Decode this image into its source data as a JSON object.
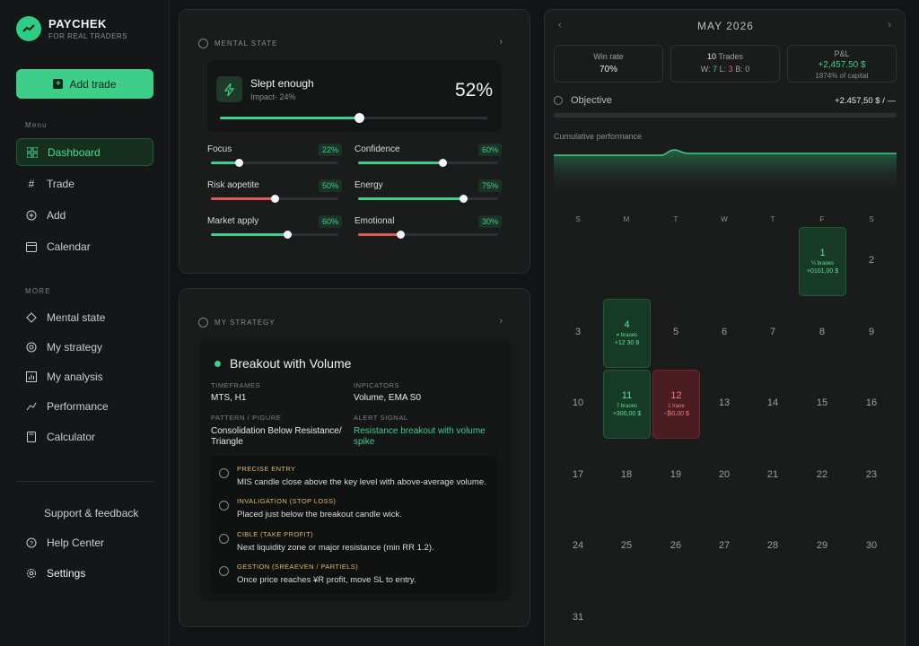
{
  "brand": {
    "name": "PAYCHEK",
    "tagline": "FOR REAL TRADERS"
  },
  "sidebar": {
    "add_trade": "Add trade",
    "menu_label": "Menu",
    "menu": [
      "Dashboard",
      "Trade",
      "Add",
      "Calendar"
    ],
    "more_label": "MORE",
    "more": [
      "Mental state",
      "My strategy",
      "My analysis",
      "Performance",
      "Calculator"
    ],
    "support": "Support & feedback",
    "help": "Help Center",
    "settings": "Settings"
  },
  "mental": {
    "title": "MENTAL STATE",
    "slept": {
      "title": "Slept enough",
      "impact": "Impact- 24%",
      "pct": "52%",
      "value": 0.52
    },
    "metrics": [
      {
        "label": "Focus",
        "badge": "22%",
        "value": 0.22,
        "color": "#3dcf8a"
      },
      {
        "label": "Confidence",
        "badge": "60%",
        "value": 0.6,
        "color": "#3dcf8a"
      },
      {
        "label": "Risk aopetite",
        "badge": "50%",
        "value": 0.5,
        "color": "#e05a5a"
      },
      {
        "label": "Energy",
        "badge": "75%",
        "value": 0.75,
        "color": "#3dcf8a"
      },
      {
        "label": "Market apply",
        "badge": "60%",
        "value": 0.6,
        "color": "#3dcf8a"
      },
      {
        "label": "Emotional",
        "badge": "30%",
        "value": 0.3,
        "color": "#e05a5a"
      }
    ]
  },
  "strategy": {
    "title": "MY STRATEGY",
    "name": "Breakout with Volume",
    "timeframes_label": "TIMEFRAMES",
    "timeframes": "MTS, H1",
    "indicators_label": "INPICATORS",
    "indicators": "Volume, EMA S0",
    "pattern_label": "PATTERN / PIGURE",
    "pattern_line1": "Consolidation Below Resistance/",
    "pattern_line2": "Triangle",
    "alert_label": "ALERT SIGNAL",
    "alert_line1": "Resistance breakout with volume",
    "alert_line2": "spike",
    "rules": [
      {
        "label": "PRECISE ENTRY",
        "text": "MIS candle close above the key level with above-average volume."
      },
      {
        "label": "INVALIGATION (STOP LOSS)",
        "text": "Placed just below the breakout candle wick."
      },
      {
        "label": "CIBLE (TAKE PROFIT)",
        "text": "Next liquidity zone or major resistance (min RR 1.2)."
      },
      {
        "label": "GESTION (SREAEVEN / PARTIELS)",
        "text": "Once price reaches ¥R profit, move SL to entry."
      }
    ]
  },
  "calendar": {
    "month": "MAY 2026",
    "prev": "‹",
    "next": "›",
    "winrate_label": "Win rate",
    "winrate": "70%",
    "trades_count": "10",
    "trades_label": "Trades",
    "trades_w": "W:",
    "trades_w_val": "7",
    "trades_l": "L:",
    "trades_l_val": "3",
    "trades_b": "B:",
    "trades_b_val": "0",
    "pnl_label": "P&L",
    "pnl": "+2,457.50 $",
    "pnl_sub": "1874% of capital",
    "objective_label": "Objective",
    "objective_value": "+2.457,50 $ / —",
    "objective_progress": 0,
    "cumulative_label": "Cumulative performance",
    "dow": [
      "S",
      "M",
      "T",
      "W",
      "T",
      "F",
      "S"
    ],
    "days": [
      {
        "d": "1",
        "win": true,
        "t": "¼ braoes",
        "p": "+0101,00 $"
      },
      {
        "d": "2"
      },
      {
        "d": "3"
      },
      {
        "d": "4",
        "win": true,
        "t": "≠ braoes",
        "p": "+12 30 8"
      },
      {
        "d": "5"
      },
      {
        "d": "6"
      },
      {
        "d": "7"
      },
      {
        "d": "8"
      },
      {
        "d": "9"
      },
      {
        "d": "10"
      },
      {
        "d": "11",
        "win": true,
        "t": "7 braoes",
        "p": "+300,00 $"
      },
      {
        "d": "12",
        "loss": true,
        "t": "1 traoe",
        "p": "−₿0,00 $"
      },
      {
        "d": "13"
      },
      {
        "d": "14"
      },
      {
        "d": "15"
      },
      {
        "d": "16"
      },
      {
        "d": "17"
      },
      {
        "d": "18"
      },
      {
        "d": "19"
      },
      {
        "d": "20"
      },
      {
        "d": "21"
      },
      {
        "d": "22"
      },
      {
        "d": "23"
      },
      {
        "d": "24"
      },
      {
        "d": "25"
      },
      {
        "d": "26"
      },
      {
        "d": "27"
      },
      {
        "d": "28"
      },
      {
        "d": "29"
      },
      {
        "d": "30"
      },
      {
        "d": "31"
      }
    ]
  },
  "colors": {
    "accent": "#3dcf8a",
    "danger": "#e05a5a",
    "bg": "#121314",
    "card": "#1a1c1c"
  }
}
